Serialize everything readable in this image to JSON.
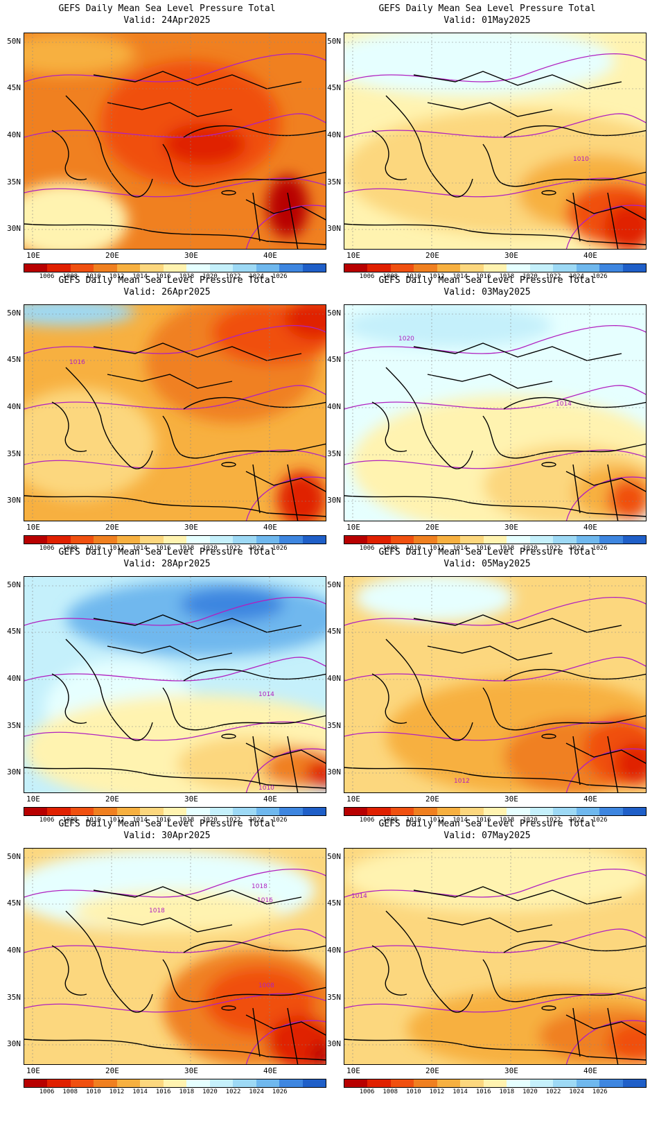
{
  "colorbar": {
    "labels": [
      "1006",
      "1008",
      "1010",
      "1012",
      "1014",
      "1016",
      "1018",
      "1020",
      "1022",
      "1024",
      "1026"
    ],
    "colors": [
      "#b80000",
      "#e02000",
      "#f05010",
      "#f08020",
      "#f7b040",
      "#fcd77e",
      "#fff3b0",
      "#e6ffff",
      "#c5f0fb",
      "#9dd9f5",
      "#6fb8ee",
      "#3e86e0",
      "#1f5fc8"
    ]
  },
  "axes": {
    "lat_labels": [
      "50N",
      "45N",
      "40N",
      "35N",
      "30N"
    ],
    "lon_labels": [
      "10E",
      "20E",
      "30E",
      "40E"
    ]
  },
  "panels": [
    {
      "title": "GEFS Daily Mean Sea Level Pressure Total",
      "valid": "Valid: 24Apr2025",
      "contour_labels": []
    },
    {
      "title": "GEFS Daily Mean Sea Level Pressure Total",
      "valid": "Valid: 01May2025",
      "contour_labels": [
        "1010"
      ]
    },
    {
      "title": "GEFS Daily Mean Sea Level Pressure Total",
      "valid": "Valid: 26Apr2025",
      "contour_labels": [
        "1016"
      ]
    },
    {
      "title": "GEFS Daily Mean Sea Level Pressure Total",
      "valid": "Valid: 03May2025",
      "contour_labels": [
        "1020",
        "1014"
      ]
    },
    {
      "title": "GEFS Daily Mean Sea Level Pressure Total",
      "valid": "Valid: 28Apr2025",
      "contour_labels": [
        "1014",
        "1010"
      ]
    },
    {
      "title": "GEFS Daily Mean Sea Level Pressure Total",
      "valid": "Valid: 05May2025",
      "contour_labels": [
        "1012"
      ]
    },
    {
      "title": "GEFS Daily Mean Sea Level Pressure Total",
      "valid": "Valid: 30Apr2025",
      "contour_labels": [
        "1018",
        "1018",
        "1016",
        "1008"
      ]
    },
    {
      "title": "GEFS Daily Mean Sea Level Pressure Total",
      "valid": "Valid: 07May2025",
      "contour_labels": [
        "1014"
      ]
    }
  ]
}
